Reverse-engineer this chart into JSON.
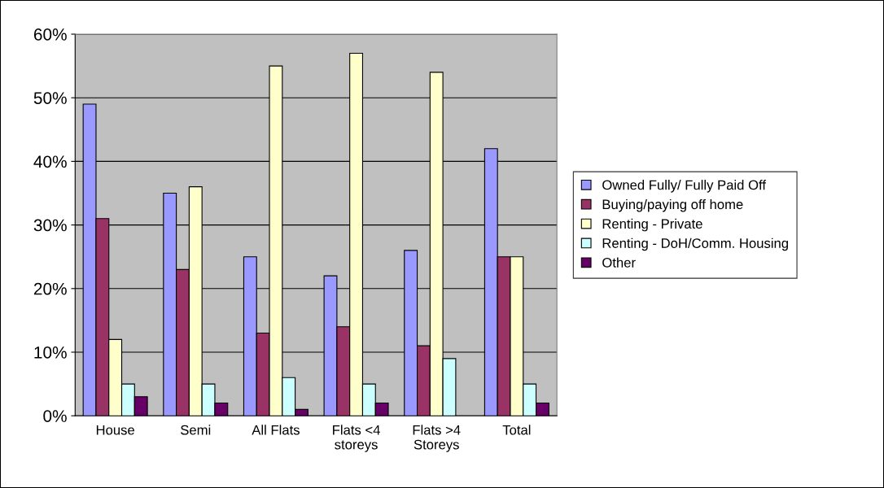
{
  "chart_data": {
    "type": "bar",
    "categories": [
      "House",
      "Semi",
      "All Flats",
      "Flats <4\nstoreys",
      "Flats >4\nStoreys",
      "Total"
    ],
    "series": [
      {
        "name": "Owned Fully/ Fully Paid Off",
        "color": "#9999ff",
        "values": [
          49,
          35,
          25,
          22,
          26,
          42
        ]
      },
      {
        "name": "Buying/paying off home",
        "color": "#993366",
        "values": [
          31,
          23,
          13,
          14,
          11,
          25
        ]
      },
      {
        "name": "Renting - Private",
        "color": "#ffffcc",
        "values": [
          12,
          36,
          55,
          57,
          54,
          25
        ]
      },
      {
        "name": "Renting - DoH/Comm. Housing",
        "color": "#ccffff",
        "values": [
          5,
          5,
          6,
          5,
          9,
          5
        ]
      },
      {
        "name": "Other",
        "color": "#660066",
        "values": [
          3,
          2,
          1,
          2,
          null,
          2
        ]
      }
    ],
    "ylim": [
      0,
      60
    ],
    "yticks": [
      {
        "value": 0,
        "label": "0%"
      },
      {
        "value": 10,
        "label": "10%"
      },
      {
        "value": 20,
        "label": "20%"
      },
      {
        "value": 30,
        "label": "30%"
      },
      {
        "value": 40,
        "label": "40%"
      },
      {
        "value": 50,
        "label": "50%"
      },
      {
        "value": 60,
        "label": "60%"
      }
    ],
    "grid": "y",
    "legend": "right"
  }
}
